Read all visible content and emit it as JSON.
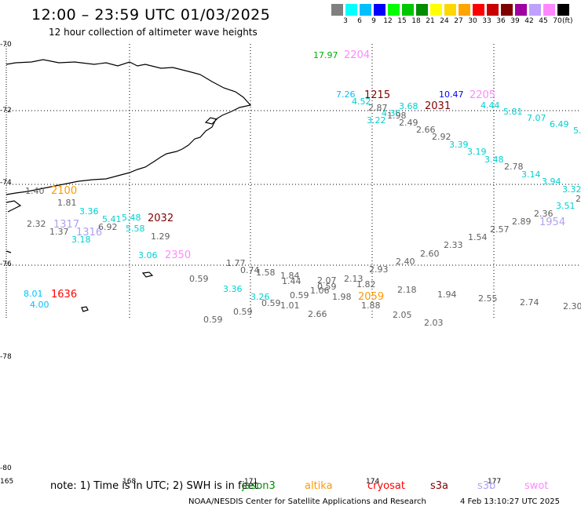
{
  "title": "12:00 – 23:59 UTC 01/03/2025",
  "subtitle": "12 hour collection of altimeter wave heights",
  "legend": {
    "colors": [
      "#808080",
      "#00ffff",
      "#00bfff",
      "#0000ff",
      "#00ff00",
      "#00c800",
      "#008c00",
      "#ffff00",
      "#ffd700",
      "#ffa500",
      "#ff0000",
      "#c80000",
      "#800000",
      "#a000a0",
      "#c0a0ff",
      "#ff88ff",
      "#000000"
    ],
    "labels": [
      "3",
      "6",
      "9",
      "12",
      "15",
      "18",
      "21",
      "24",
      "27",
      "30",
      "33",
      "36",
      "39",
      "42",
      "45",
      "70"
    ],
    "unit": "(ft)"
  },
  "latitudes": [
    "-70",
    "-72",
    "-74",
    "-76",
    "-78",
    "-80"
  ],
  "longitudes": [
    "165",
    "168",
    "171",
    "174",
    "177"
  ],
  "observations": [
    {
      "text": "17.97",
      "color": "#00b000"
    },
    {
      "text": "2204",
      "color": "#ff88ff"
    },
    {
      "text": "7.26",
      "color": "#00bfff"
    },
    {
      "text": "1215",
      "color": "#800000"
    },
    {
      "text": "10.47",
      "color": "#0000ff"
    },
    {
      "text": "2205",
      "color": "#ff88ff"
    },
    {
      "text": "4.52",
      "color": "#00d0d0"
    },
    {
      "text": "2.87",
      "color": "#606060"
    },
    {
      "text": "3.68",
      "color": "#00d0d0"
    },
    {
      "text": "2031",
      "color": "#800000"
    },
    {
      "text": "4.44",
      "color": "#00d0d0"
    },
    {
      "text": "4.36",
      "color": "#00d0d0"
    },
    {
      "text": "1.98",
      "color": "#606060"
    },
    {
      "text": "3.22",
      "color": "#00d0d0"
    },
    {
      "text": "2.49",
      "color": "#606060"
    },
    {
      "text": "5.81",
      "color": "#00d0d0"
    },
    {
      "text": "7.07",
      "color": "#00d0d0"
    },
    {
      "text": "6.49",
      "color": "#00d0d0"
    },
    {
      "text": "5.",
      "color": "#00d0d0"
    },
    {
      "text": "2.66",
      "color": "#606060"
    },
    {
      "text": "2.92",
      "color": "#606060"
    },
    {
      "text": "3.39",
      "color": "#00d0d0"
    },
    {
      "text": "3.19",
      "color": "#00d0d0"
    },
    {
      "text": "3.48",
      "color": "#00d0d0"
    },
    {
      "text": "2.78",
      "color": "#606060"
    },
    {
      "text": "3.14",
      "color": "#00d0d0"
    },
    {
      "text": "3.94",
      "color": "#00d0d0"
    },
    {
      "text": "3.32",
      "color": "#00d0d0"
    },
    {
      "text": "2",
      "color": "#606060"
    },
    {
      "text": "3.51",
      "color": "#00d0d0"
    },
    {
      "text": "2.36",
      "color": "#606060"
    },
    {
      "text": "1954",
      "color": "#b0a0f0"
    },
    {
      "text": "2.89",
      "color": "#606060"
    },
    {
      "text": "2.57",
      "color": "#606060"
    },
    {
      "text": "1.54",
      "color": "#606060"
    },
    {
      "text": "2.33",
      "color": "#606060"
    },
    {
      "text": "2.60",
      "color": "#606060"
    },
    {
      "text": "2.40",
      "color": "#606060"
    },
    {
      "text": "2.93",
      "color": "#606060"
    },
    {
      "text": "1.40",
      "color": "#606060"
    },
    {
      "text": "2100",
      "color": "#ff9900"
    },
    {
      "text": "1.81",
      "color": "#606060"
    },
    {
      "text": "3.36",
      "color": "#00d0d0"
    },
    {
      "text": "2.32",
      "color": "#606060"
    },
    {
      "text": "1317",
      "color": "#b0a0f0"
    },
    {
      "text": "5.41",
      "color": "#00d0d0"
    },
    {
      "text": "5.48",
      "color": "#00d0d0"
    },
    {
      "text": "2032",
      "color": "#800000"
    },
    {
      "text": "1.37",
      "color": "#606060"
    },
    {
      "text": "1316",
      "color": "#b0a0f0"
    },
    {
      "text": "6.92",
      "color": "#606060"
    },
    {
      "text": "5.58",
      "color": "#00d0d0"
    },
    {
      "text": "3.18",
      "color": "#00d0d0"
    },
    {
      "text": "1.29",
      "color": "#606060"
    },
    {
      "text": "3.06",
      "color": "#00d0d0"
    },
    {
      "text": "2350",
      "color": "#ff88ff"
    },
    {
      "text": "1.77",
      "color": "#606060"
    },
    {
      "text": "0.74",
      "color": "#606060"
    },
    {
      "text": "1.58",
      "color": "#606060"
    },
    {
      "text": "1.84",
      "color": "#606060"
    },
    {
      "text": "1.44",
      "color": "#606060"
    },
    {
      "text": "2.07",
      "color": "#606060"
    },
    {
      "text": "2.13",
      "color": "#606060"
    },
    {
      "text": "0.59",
      "color": "#606060"
    },
    {
      "text": "0.59",
      "color": "#606060"
    },
    {
      "text": "1.82",
      "color": "#606060"
    },
    {
      "text": "1.06",
      "color": "#606060"
    },
    {
      "text": "8.01",
      "color": "#00bfff"
    },
    {
      "text": "1636",
      "color": "#ff0000"
    },
    {
      "text": "3.36",
      "color": "#00d0d0"
    },
    {
      "text": "3.26",
      "color": "#00d0d0"
    },
    {
      "text": "0.59",
      "color": "#606060"
    },
    {
      "text": "1.98",
      "color": "#606060"
    },
    {
      "text": "2059",
      "color": "#ff9900"
    },
    {
      "text": "2.18",
      "color": "#606060"
    },
    {
      "text": "1.94",
      "color": "#606060"
    },
    {
      "text": "2.55",
      "color": "#606060"
    },
    {
      "text": "2.74",
      "color": "#606060"
    },
    {
      "text": "4.00",
      "color": "#00bfff"
    },
    {
      "text": "0.59",
      "color": "#606060"
    },
    {
      "text": "1.01",
      "color": "#606060"
    },
    {
      "text": "1.88",
      "color": "#606060"
    },
    {
      "text": "2.30",
      "color": "#606060"
    },
    {
      "text": "0.59",
      "color": "#606060"
    },
    {
      "text": "2.66",
      "color": "#606060"
    },
    {
      "text": "2.05",
      "color": "#606060"
    },
    {
      "text": "2.03",
      "color": "#606060"
    },
    {
      "text": "0.59",
      "color": "#606060"
    }
  ],
  "note": {
    "text": "note:  1) Time is in UTC;  2) SWH is in feet",
    "satellites": [
      {
        "name": "jason3",
        "color": "#008c00"
      },
      {
        "name": "altika",
        "color": "#ff9900"
      },
      {
        "name": "cryosat",
        "color": "#ff0000"
      },
      {
        "name": "s3a",
        "color": "#800000"
      },
      {
        "name": "s3b",
        "color": "#b0a0f0"
      },
      {
        "name": "swot",
        "color": "#ff88ff"
      }
    ]
  },
  "credit": "NOAA/NESDIS Center for Satellite Applications and Research",
  "stamp": "4 Feb 13:10:27 UTC 2025"
}
